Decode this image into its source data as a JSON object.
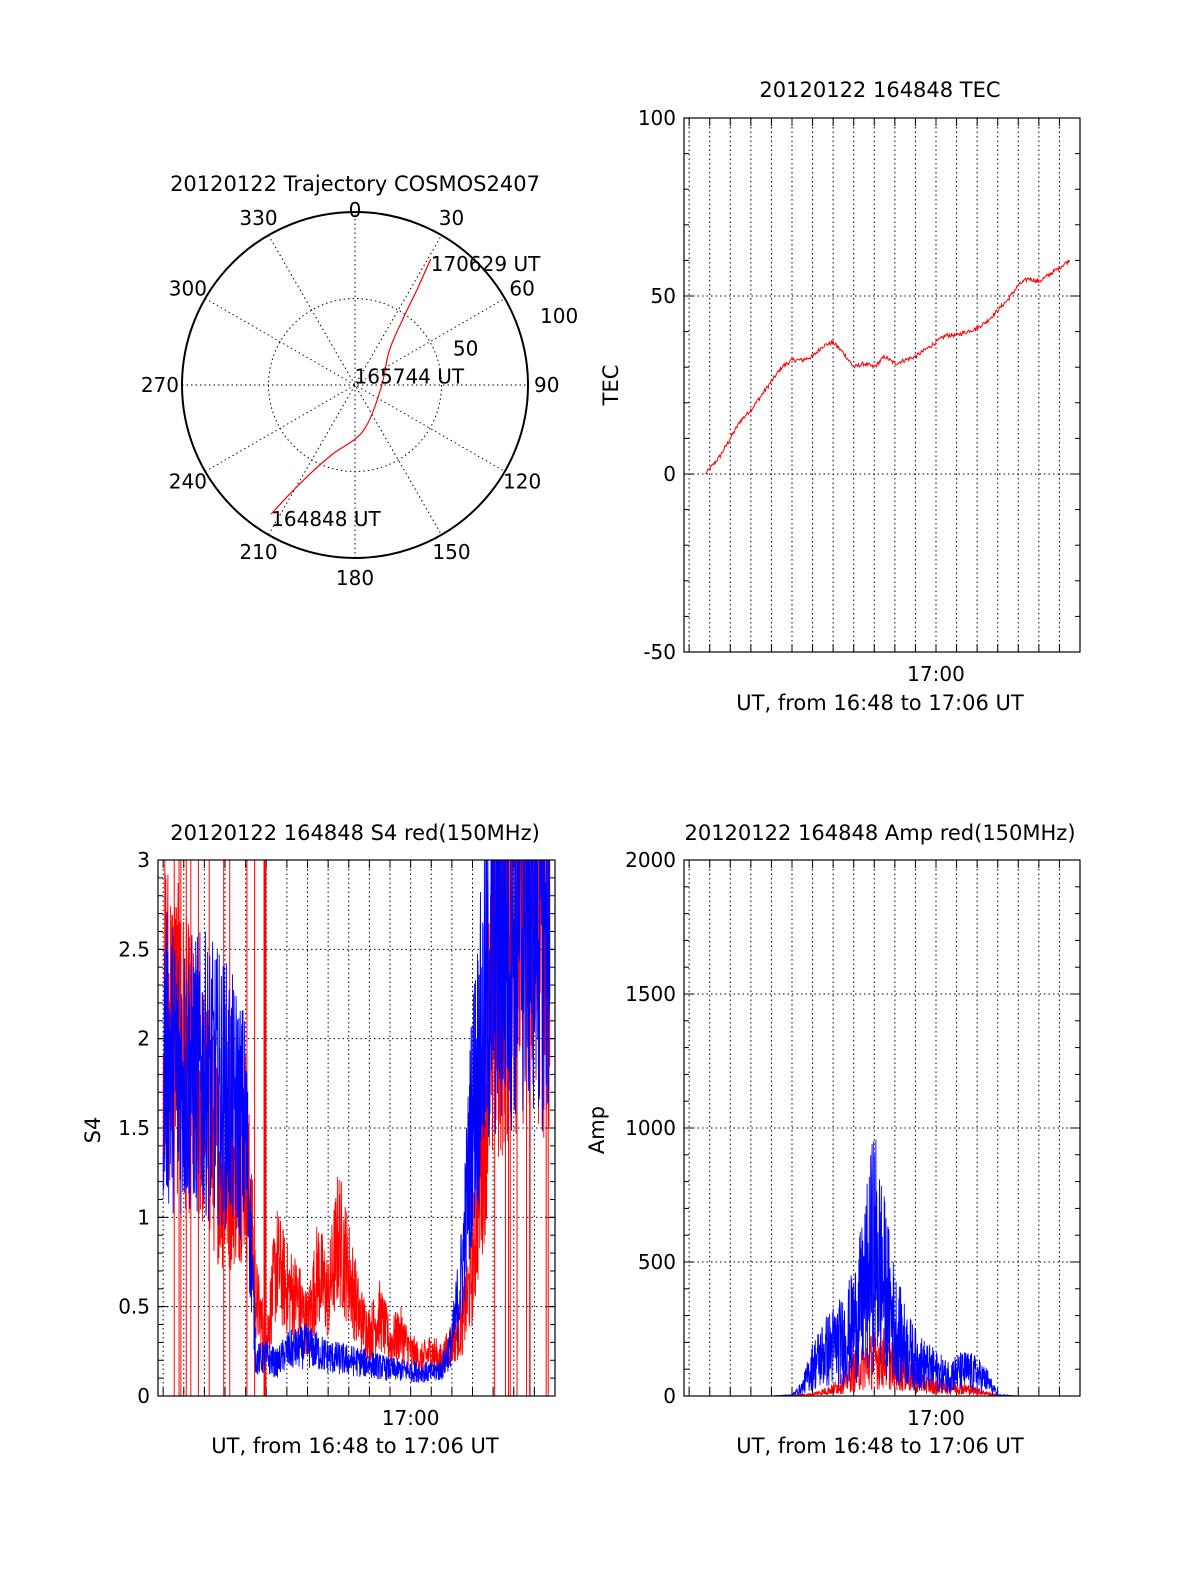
{
  "colors": {
    "red": "#ff0000",
    "blue": "#0000ff",
    "axis": "#000000",
    "background": "#ffffff"
  },
  "chart_data": [
    {
      "id": "trajectory",
      "type": "polar",
      "title": "20120122 Trajectory COSMOS2407",
      "angle_labels": [
        "0",
        "30",
        "60",
        "90",
        "120",
        "150",
        "180",
        "210",
        "240",
        "270",
        "300",
        "330"
      ],
      "radial_labels": [
        "50",
        "100"
      ],
      "rlim": [
        0,
        100
      ],
      "grid": true,
      "track": {
        "color": "red",
        "points": [
          {
            "az": 213,
            "r": 89
          },
          {
            "az": 211,
            "r": 74
          },
          {
            "az": 207,
            "r": 58
          },
          {
            "az": 198,
            "r": 42
          },
          {
            "az": 170,
            "r": 27
          },
          {
            "az": 100,
            "r": 15
          },
          {
            "az": 45,
            "r": 28
          },
          {
            "az": 36,
            "r": 47
          },
          {
            "az": 33,
            "r": 66
          },
          {
            "az": 31,
            "r": 85
          }
        ]
      },
      "annotations": [
        {
          "text": "170629 UT",
          "az": 31,
          "r": 85
        },
        {
          "text": "165744 UT",
          "az": 100,
          "r": 15
        },
        {
          "text": "164848 UT",
          "az": 213,
          "r": 89
        }
      ]
    },
    {
      "id": "tec",
      "type": "line",
      "title": "20120122 164848 TEC",
      "xlabel": "UT, from 16:48 to 17:06 UT",
      "ylabel": "TEC",
      "xlim": [
        "16:47:45",
        "17:07:00"
      ],
      "ylim": [
        -50,
        100
      ],
      "yticks": [
        -50,
        0,
        50,
        100
      ],
      "xtick_labels": [
        {
          "x": "17:00",
          "label": "17:00"
        }
      ],
      "grid": true,
      "series": [
        {
          "color": "red",
          "x": [
            "16:48:48",
            "16:49:30",
            "16:50:00",
            "16:50:30",
            "16:51:00",
            "16:51:30",
            "16:52:00",
            "16:52:30",
            "16:53:00",
            "16:53:30",
            "16:54:00",
            "16:54:30",
            "16:55:00",
            "16:55:30",
            "16:56:00",
            "16:56:30",
            "16:57:00",
            "16:57:30",
            "16:58:00",
            "16:58:30",
            "16:59:00",
            "16:59:30",
            "17:00:00",
            "17:00:30",
            "17:01:00",
            "17:01:30",
            "17:02:00",
            "17:02:30",
            "17:03:00",
            "17:03:30",
            "17:04:00",
            "17:04:30",
            "17:05:00",
            "17:05:30",
            "17:06:00",
            "17:06:29"
          ],
          "y": [
            0,
            5,
            10,
            15,
            18,
            22,
            26,
            30,
            32,
            32,
            33,
            36,
            37,
            34,
            30,
            31,
            30,
            33,
            31,
            32,
            33,
            35,
            37,
            39,
            39,
            40,
            41,
            43,
            46,
            49,
            53,
            55,
            54,
            56,
            58,
            60
          ]
        }
      ]
    },
    {
      "id": "s4",
      "type": "line",
      "title": "20120122 164848 S4 red(150MHz)",
      "xlabel": "UT, from 16:48 to 17:06 UT",
      "ylabel": "S4",
      "xlim": [
        "16:47:45",
        "17:07:00"
      ],
      "ylim": [
        0,
        3
      ],
      "yticks": [
        0,
        0.5,
        1,
        1.5,
        2,
        2.5,
        3
      ],
      "xtick_labels": [
        {
          "x": "17:00",
          "label": "17:00"
        }
      ],
      "grid": true,
      "series": [
        {
          "color": "red",
          "x": [
            "16:48:00",
            "16:49:00",
            "16:50:00",
            "16:51:00",
            "16:52:00",
            "16:52:30",
            "16:53:00",
            "16:53:30",
            "16:54:00",
            "16:54:30",
            "16:55:00",
            "16:55:30",
            "16:56:00",
            "16:56:30",
            "16:57:00",
            "16:57:30",
            "16:58:00",
            "16:58:30",
            "16:59:00",
            "16:59:30",
            "17:00:00",
            "17:00:30",
            "17:01:00",
            "17:01:30",
            "17:02:00",
            "17:02:30",
            "17:03:00",
            "17:04:00",
            "17:05:00",
            "17:06:00",
            "17:06:45"
          ],
          "y": [
            2.2,
            1.9,
            1.6,
            1.2,
            1.4,
            0.55,
            0.3,
            0.75,
            0.6,
            0.55,
            0.4,
            0.7,
            0.55,
            0.9,
            0.7,
            0.45,
            0.35,
            0.45,
            0.3,
            0.35,
            0.25,
            0.2,
            0.25,
            0.2,
            0.3,
            0.4,
            0.7,
            2.2,
            2.6,
            2.8,
            2.4
          ]
        },
        {
          "color": "blue",
          "x": [
            "16:48:00",
            "16:49:00",
            "16:50:00",
            "16:51:00",
            "16:52:00",
            "16:52:30",
            "16:53:00",
            "16:53:30",
            "16:54:00",
            "16:55:00",
            "16:56:00",
            "16:57:00",
            "16:58:00",
            "16:59:00",
            "17:00:00",
            "17:01:00",
            "17:01:30",
            "17:02:00",
            "17:02:30",
            "17:03:00",
            "17:04:00",
            "17:05:00",
            "17:06:00",
            "17:06:45"
          ],
          "y": [
            1.9,
            1.8,
            1.8,
            1.7,
            1.5,
            0.2,
            0.22,
            0.18,
            0.25,
            0.28,
            0.22,
            0.2,
            0.18,
            0.15,
            0.14,
            0.13,
            0.15,
            0.3,
            0.7,
            1.6,
            2.5,
            2.7,
            2.8,
            2.6
          ]
        }
      ]
    },
    {
      "id": "amp",
      "type": "line",
      "title": "20120122 164848 Amp red(150MHz)",
      "xlabel": "UT, from 16:48 to 17:06 UT",
      "ylabel": "Amp",
      "xlim": [
        "16:47:45",
        "17:07:00"
      ],
      "ylim": [
        0,
        2000
      ],
      "yticks": [
        0,
        500,
        1000,
        1500,
        2000
      ],
      "xtick_labels": [
        {
          "x": "17:00",
          "label": "17:00"
        }
      ],
      "grid": true,
      "series": [
        {
          "color": "red",
          "x": [
            "16:48:00",
            "16:50:00",
            "16:52:00",
            "16:53:00",
            "16:54:00",
            "16:55:00",
            "16:55:30",
            "16:56:00",
            "16:56:30",
            "16:57:00",
            "16:57:30",
            "16:58:00",
            "16:58:30",
            "16:59:00",
            "16:59:30",
            "17:00:00",
            "17:00:30",
            "17:01:00",
            "17:01:30",
            "17:02:00",
            "17:02:30",
            "17:03:00",
            "17:04:00",
            "17:06:45"
          ],
          "y": [
            0,
            0,
            0,
            2,
            10,
            40,
            80,
            150,
            180,
            220,
            230,
            180,
            130,
            90,
            70,
            60,
            55,
            50,
            40,
            30,
            15,
            3,
            0,
            0
          ]
        },
        {
          "color": "blue",
          "x": [
            "16:48:00",
            "16:50:00",
            "16:52:00",
            "16:53:00",
            "16:53:30",
            "16:54:00",
            "16:54:30",
            "16:55:00",
            "16:55:30",
            "16:56:00",
            "16:56:30",
            "16:57:00",
            "16:57:30",
            "16:58:00",
            "16:58:30",
            "16:59:00",
            "16:59:30",
            "17:00:00",
            "17:00:30",
            "17:01:00",
            "17:01:30",
            "17:02:00",
            "17:02:30",
            "17:03:00",
            "17:04:00",
            "17:06:45"
          ],
          "y": [
            0,
            0,
            0,
            5,
            50,
            180,
            250,
            300,
            330,
            420,
            600,
            900,
            650,
            420,
            300,
            220,
            180,
            150,
            120,
            140,
            150,
            130,
            90,
            5,
            0,
            0
          ]
        }
      ]
    }
  ]
}
